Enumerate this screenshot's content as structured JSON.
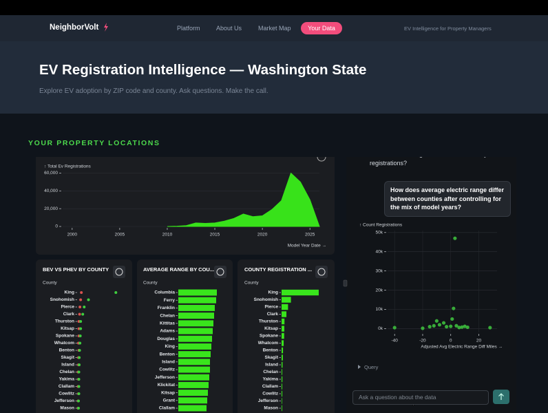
{
  "nav": {
    "logo": "NeighborVolt",
    "links": [
      "Platform",
      "About Us",
      "Market Map",
      "Your Data"
    ],
    "tagline": "EV Intelligence for Property Managers"
  },
  "header": {
    "title": "EV Registration Intelligence — Washington State",
    "subtitle": "Explore EV adoption by ZIP code and county. Ask questions. Make the call."
  },
  "section_title": "YOUR PROPERTY LOCATIONS",
  "chat": {
    "assistant_text": "account for the largest share of that county's EV registrations?",
    "user_question": "How does average electric range differ between counties after controlling for the mix of model years?",
    "query_toggle": "Query",
    "input_placeholder": "Ask a question about the data"
  },
  "chart_data": [
    {
      "type": "area",
      "y_label": "↑ Total Ev Registrations",
      "x_label": "Model Year Date →",
      "x": [
        2010,
        2011,
        2012,
        2013,
        2014,
        2015,
        2016,
        2017,
        2018,
        2019,
        2020,
        2021,
        2022,
        2023,
        2024,
        2025,
        2026
      ],
      "values": [
        0,
        300,
        1000,
        4000,
        3500,
        4000,
        6000,
        9000,
        14000,
        11000,
        12000,
        19000,
        29000,
        60000,
        50000,
        30000,
        0
      ],
      "color": "#38e21a",
      "xlim": [
        1999,
        2026
      ],
      "ylim": [
        0,
        65000
      ],
      "xticks": [
        2000,
        2005,
        2010,
        2015,
        2020,
        2025
      ],
      "yticks": [
        0,
        {
          "value": 20000,
          "label": "20,000"
        },
        {
          "value": 40000,
          "label": "40,000"
        },
        {
          "value": 60000,
          "label": "60,000"
        }
      ],
      "grid": true
    },
    {
      "type": "dot",
      "title": "BEV VS PHEV BY COUNTY",
      "y_label": "County",
      "categories": [
        "King",
        "Snohomish",
        "Pierce",
        "Clark",
        "Thurston",
        "Kitsap",
        "Spokane",
        "Whatcom",
        "Benton",
        "Skagit",
        "Island",
        "Chelan",
        "Yakima",
        "Clallam",
        "Cowlitz",
        "Jefferson",
        "Mason"
      ],
      "series": [
        {
          "name": "PHEV",
          "color": "#d9534f",
          "values": [
            10,
            8,
            6,
            5,
            3,
            3,
            3,
            2,
            3,
            2,
            2,
            1,
            2,
            1,
            2,
            1,
            1
          ]
        },
        {
          "name": "BEV",
          "color": "#3fcf3f",
          "values": [
            107,
            30,
            18,
            14,
            8,
            8,
            7,
            6,
            5,
            4,
            4,
            3,
            3,
            3,
            3,
            2,
            2
          ]
        }
      ],
      "xlim": [
        0,
        120
      ]
    },
    {
      "type": "hbar",
      "title": "AVERAGE RANGE BY COU...",
      "y_label": "County",
      "categories": [
        "Columbia",
        "Ferry",
        "Franklin",
        "Chelan",
        "Kittitas",
        "Adams",
        "Douglas",
        "King",
        "Benton",
        "Island",
        "Cowlitz",
        "Jefferson",
        "Klickitat",
        "Kitsap",
        "Grant",
        "Clallam"
      ],
      "values": [
        56,
        55,
        53,
        52,
        51,
        50,
        49,
        48,
        47,
        46,
        46,
        45,
        44,
        43,
        42,
        41
      ],
      "color": "#39e51c",
      "xlim": [
        0,
        70
      ]
    },
    {
      "type": "hbar",
      "title": "COUNTY REGISTRATION ...",
      "y_label": "County",
      "categories": [
        "King",
        "Snohomish",
        "Pierce",
        "Clark",
        "Thurston",
        "Kitsap",
        "Spokane",
        "Whatcom",
        "Benton",
        "Skagit",
        "Island",
        "Chelan",
        "Yakima",
        "Clallam",
        "Cowlitz",
        "Jefferson",
        "Mason"
      ],
      "values": [
        115000,
        29000,
        20000,
        15000,
        9000,
        8500,
        8000,
        6500,
        4500,
        4000,
        3000,
        2000,
        2500,
        2000,
        2200,
        1500,
        1800
      ],
      "color": "#39e51c",
      "xlim": [
        0,
        130000
      ]
    },
    {
      "type": "scatter",
      "y_label": "↑ Count Registrations",
      "x_label": "Adjusted Avg Electric Range Diff Miles →",
      "x": [
        -40,
        -20,
        -15,
        -12,
        -10,
        -8,
        -5,
        -3,
        0,
        1,
        2,
        3,
        4,
        6,
        8,
        10,
        12,
        28
      ],
      "values": [
        500,
        200,
        1000,
        1500,
        4000,
        2000,
        3000,
        1000,
        1200,
        5000,
        10500,
        47000,
        1500,
        600,
        800,
        1200,
        700,
        500
      ],
      "color": "#3dbb3d",
      "xlim": [
        -45,
        33
      ],
      "ylim": [
        -2000,
        51000
      ],
      "xticks": [
        -40,
        -20,
        0,
        20
      ],
      "yticks": [
        {
          "value": 0,
          "label": "0k"
        },
        {
          "value": 10000,
          "label": "10k"
        },
        {
          "value": 20000,
          "label": "20k"
        },
        {
          "value": 30000,
          "label": "30k"
        },
        {
          "value": 40000,
          "label": "40k"
        },
        {
          "value": 50000,
          "label": "50k"
        }
      ],
      "grid": true
    }
  ]
}
